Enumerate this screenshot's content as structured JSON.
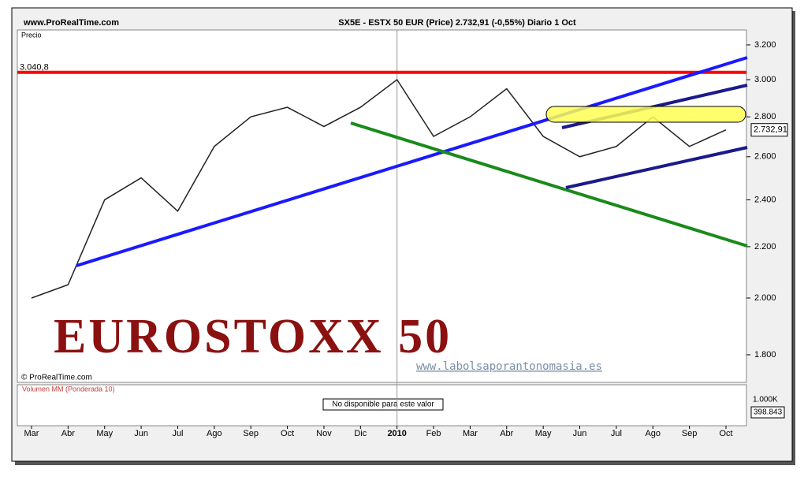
{
  "chart_data": {
    "type": "line",
    "site": "www.ProRealTime.com",
    "title": "SX5E - ESTX 50 EUR (Price)   2.732,91 (-0,55%)   Diario  1 Oct",
    "y_label": "Precio",
    "copyright": "© ProRealTime.com",
    "overlay_title": "EUROSTOXX 50",
    "overlay_url": "www.labolsaporantonomasia.es",
    "log_scale": true,
    "ylim": [
      1710,
      3290
    ],
    "yticks": [
      {
        "value": 1800,
        "label": "1.800"
      },
      {
        "value": 2000,
        "label": "2.000"
      },
      {
        "value": 2200,
        "label": "2.200"
      },
      {
        "value": 2400,
        "label": "2.400"
      },
      {
        "value": 2600,
        "label": "2.600"
      },
      {
        "value": 2800,
        "label": "2.800"
      },
      {
        "value": 3000,
        "label": "3.000"
      },
      {
        "value": 3200,
        "label": "3.200"
      }
    ],
    "categories": [
      "Mar",
      "Abr",
      "May",
      "Jun",
      "Jul",
      "Ago",
      "Sep",
      "Oct",
      "Nov",
      "Dic",
      "2010",
      "Feb",
      "Mar",
      "Abr",
      "May",
      "Jun",
      "Jul",
      "Ago",
      "Sep",
      "Oct"
    ],
    "series": [
      {
        "name": "SX5E",
        "color": "#222222",
        "values": [
          2000,
          2050,
          2400,
          2500,
          2350,
          2650,
          2800,
          2850,
          2750,
          2850,
          3000,
          2700,
          2800,
          2950,
          2700,
          2600,
          2650,
          2800,
          2650,
          2733
        ]
      }
    ],
    "last_value": 2732.91,
    "last_label": "2.732,91",
    "resistance": {
      "value": 3040.8,
      "label": "3.040,8",
      "color": "#ff0000"
    },
    "volume": {
      "title": "Volumen MM (Ponderada 10)",
      "note": "No disponible para este valor",
      "tick": "1.000K",
      "last": "398.843"
    }
  }
}
